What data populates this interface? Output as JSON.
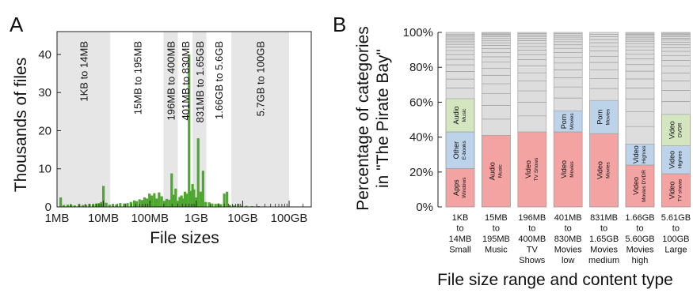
{
  "panels": {
    "left_letter": "A",
    "right_letter": "B"
  },
  "colors": {
    "bar_green": "#4ea72e",
    "band_grey": "#e6e6e6",
    "seg_red": "#f4a3a3",
    "seg_blue": "#bcd3ea",
    "seg_green": "#d3e6bf",
    "seg_grey": "#dddddd",
    "seg_line": "#9a9a9a"
  },
  "chart_data": [
    {
      "type": "bar",
      "ylabel": "Thousands of files",
      "xlabel": "File sizes",
      "xscale": "log",
      "xlim_bytes": [
        1000000,
        300000000000
      ],
      "ylim": [
        0,
        46
      ],
      "yticks": [
        0,
        10,
        20,
        30,
        40
      ],
      "xticks": [
        {
          "value": 1000000,
          "label": "1MB"
        },
        {
          "value": 10000000,
          "label": "10MB"
        },
        {
          "value": 100000000,
          "label": "100MB"
        },
        {
          "value": 1000000000,
          "label": "1GB"
        },
        {
          "value": 10000000000,
          "label": "10GB"
        },
        {
          "value": 100000000000,
          "label": "100GB"
        }
      ],
      "shaded_ranges": [
        {
          "from_bytes": 1000,
          "to_bytes": 14000000,
          "label": "1KB to 14MB"
        },
        {
          "from_bytes": 196000000,
          "to_bytes": 400000000,
          "label": "196MB to 400MB"
        },
        {
          "from_bytes": 831000000,
          "to_bytes": 1650000000,
          "label": "831MB to 1.65GB"
        },
        {
          "from_bytes": 5700000000,
          "to_bytes": 100000000000,
          "label": "5.7GB to 100GB"
        }
      ],
      "unshaded_range_labels": [
        {
          "from_bytes": 15000000,
          "to_bytes": 195000000,
          "label": "15MB to 195MB"
        },
        {
          "from_bytes": 401000000,
          "to_bytes": 830000000,
          "label": "401MB to 830MB"
        },
        {
          "from_bytes": 1660000000,
          "to_bytes": 5600000000,
          "label": "1.66GB to 5.6GB"
        }
      ],
      "bars": [
        {
          "x": 1200000,
          "y": 2.5
        },
        {
          "x": 1400000,
          "y": 0.5
        },
        {
          "x": 1700000,
          "y": 0.6
        },
        {
          "x": 2000000,
          "y": 0.6
        },
        {
          "x": 2400000,
          "y": 0.4
        },
        {
          "x": 3000000,
          "y": 0.7
        },
        {
          "x": 3600000,
          "y": 0.5
        },
        {
          "x": 4200000,
          "y": 0.6
        },
        {
          "x": 5000000,
          "y": 0.8
        },
        {
          "x": 6000000,
          "y": 0.7
        },
        {
          "x": 7000000,
          "y": 0.9
        },
        {
          "x": 8000000,
          "y": 1.0
        },
        {
          "x": 9000000,
          "y": 1.3
        },
        {
          "x": 10000000,
          "y": 5.5
        },
        {
          "x": 11500000,
          "y": 1.1
        },
        {
          "x": 13500000,
          "y": 0.6
        },
        {
          "x": 16000000,
          "y": 0.8
        },
        {
          "x": 19000000,
          "y": 0.7
        },
        {
          "x": 23000000,
          "y": 1.0
        },
        {
          "x": 28000000,
          "y": 0.9
        },
        {
          "x": 33000000,
          "y": 1.0
        },
        {
          "x": 39000000,
          "y": 1.3
        },
        {
          "x": 46000000,
          "y": 1.7
        },
        {
          "x": 52000000,
          "y": 1.5
        },
        {
          "x": 60000000,
          "y": 2.0
        },
        {
          "x": 68000000,
          "y": 1.8
        },
        {
          "x": 77000000,
          "y": 2.5
        },
        {
          "x": 87000000,
          "y": 2.2
        },
        {
          "x": 98000000,
          "y": 3.5
        },
        {
          "x": 110000000,
          "y": 3.0
        },
        {
          "x": 125000000,
          "y": 3.6
        },
        {
          "x": 140000000,
          "y": 2.2
        },
        {
          "x": 158000000,
          "y": 3.8
        },
        {
          "x": 180000000,
          "y": 2.8
        },
        {
          "x": 205000000,
          "y": 1.6
        },
        {
          "x": 230000000,
          "y": 2.1
        },
        {
          "x": 262000000,
          "y": 1.9
        },
        {
          "x": 295000000,
          "y": 8.8
        },
        {
          "x": 330000000,
          "y": 3.2
        },
        {
          "x": 360000000,
          "y": 4.8
        },
        {
          "x": 395000000,
          "y": 1.6
        },
        {
          "x": 440000000,
          "y": 2.6
        },
        {
          "x": 480000000,
          "y": 3.0
        },
        {
          "x": 525000000,
          "y": 2.2
        },
        {
          "x": 570000000,
          "y": 4.0
        },
        {
          "x": 620000000,
          "y": 3.5
        },
        {
          "x": 700000000,
          "y": 40.0
        },
        {
          "x": 760000000,
          "y": 4.2
        },
        {
          "x": 830000000,
          "y": 6.0
        },
        {
          "x": 890000000,
          "y": 4.6
        },
        {
          "x": 1000000000,
          "y": 2.5
        },
        {
          "x": 1100000000,
          "y": 18.0
        },
        {
          "x": 1250000000,
          "y": 4.0
        },
        {
          "x": 1400000000,
          "y": 9.5
        },
        {
          "x": 1600000000,
          "y": 1.3
        },
        {
          "x": 1900000000,
          "y": 1.2
        },
        {
          "x": 2200000000,
          "y": 0.9
        },
        {
          "x": 2600000000,
          "y": 0.8
        },
        {
          "x": 3000000000,
          "y": 0.9
        },
        {
          "x": 3400000000,
          "y": 0.7
        },
        {
          "x": 4000000000,
          "y": 3.5
        },
        {
          "x": 4600000000,
          "y": 4.0
        },
        {
          "x": 5300000000,
          "y": 0.5
        },
        {
          "x": 6500000000,
          "y": 0.4
        },
        {
          "x": 8000000000,
          "y": 0.8
        },
        {
          "x": 9500000000,
          "y": 0.3
        },
        {
          "x": 12000000000,
          "y": 0.3
        },
        {
          "x": 16000000000,
          "y": 0.2
        },
        {
          "x": 22000000000,
          "y": 0.2
        }
      ]
    },
    {
      "type": "stacked-bar",
      "ylabel_line1": "Percentage of categories",
      "ylabel_line2": "in \"The Pirate Bay\"",
      "xlabel": "File size range and content type",
      "ylim": [
        0,
        100
      ],
      "yticks": [
        {
          "value": 0,
          "label": "0%"
        },
        {
          "value": 20,
          "label": "20%"
        },
        {
          "value": 40,
          "label": "40%"
        },
        {
          "value": 60,
          "label": "60%"
        },
        {
          "value": 80,
          "label": "80%"
        },
        {
          "value": 100,
          "label": "100%"
        }
      ],
      "categories": [
        {
          "label_lines": [
            "1KB",
            "to",
            "14MB",
            "Small"
          ],
          "segments": [
            {
              "value": 22,
              "color": "red",
              "main": "Apps",
              "sub": "Windows"
            },
            {
              "value": 21,
              "color": "blue",
              "main": "Other",
              "sub": "E-books"
            },
            {
              "value": 19,
              "color": "green",
              "main": "Audio",
              "sub": "Music"
            }
          ],
          "rest_dividers": 17
        },
        {
          "label_lines": [
            "15MB",
            "to",
            "195MB",
            "Music"
          ],
          "segments": [
            {
              "value": 41,
              "color": "red",
              "main": "Audio",
              "sub": "Music"
            }
          ],
          "rest_dividers": 19
        },
        {
          "label_lines": [
            "196MB",
            "to",
            "400MB",
            "TV",
            "Shows"
          ],
          "segments": [
            {
              "value": 43,
              "color": "red",
              "main": "Video",
              "sub": "TV Shows"
            }
          ],
          "rest_dividers": 17
        },
        {
          "label_lines": [
            "401MB",
            "to",
            "830MB",
            "Movies",
            "low"
          ],
          "segments": [
            {
              "value": 43,
              "color": "red",
              "main": "Video",
              "sub": "Movies"
            },
            {
              "value": 12,
              "color": "blue",
              "main": "Porn",
              "sub": "Movies"
            }
          ],
          "rest_dividers": 15
        },
        {
          "label_lines": [
            "831MB",
            "to",
            "1.65GB",
            "Movies",
            "medium"
          ],
          "segments": [
            {
              "value": 42,
              "color": "red",
              "main": "Video",
              "sub": "Movies"
            },
            {
              "value": 19,
              "color": "blue",
              "main": "Porn",
              "sub": "Movies"
            }
          ],
          "rest_dividers": 12
        },
        {
          "label_lines": [
            "1.66GB",
            "to",
            "5.60GB",
            "Movies",
            "high"
          ],
          "segments": [
            {
              "value": 24,
              "color": "red",
              "main": "Video",
              "sub": "Movies DVDR"
            },
            {
              "value": 12,
              "color": "blue",
              "main": "Video",
              "sub": "Highres"
            }
          ],
          "rest_dividers": 19
        },
        {
          "label_lines": [
            "5.61GB",
            "to",
            "100GB",
            "Large"
          ],
          "segments": [
            {
              "value": 19,
              "color": "red",
              "main": "Video",
              "sub": "TV shows"
            },
            {
              "value": 16,
              "color": "blue",
              "main": "Video",
              "sub": "Highres"
            },
            {
              "value": 18,
              "color": "green",
              "main": "Video",
              "sub": "DVDR"
            }
          ],
          "rest_dividers": 18
        }
      ]
    }
  ]
}
